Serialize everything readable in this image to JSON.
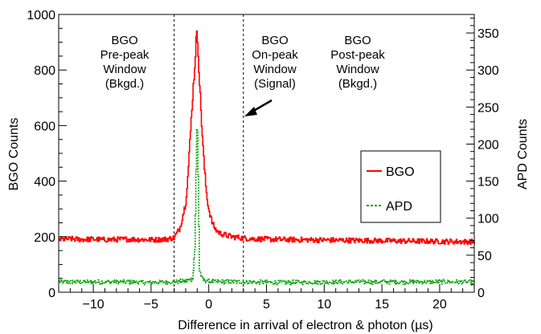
{
  "chart_data": {
    "type": "line",
    "xlabel": "Difference in arrival of electron & photon (µs)",
    "ylabel": "BGO Counts",
    "y2label": "APD Counts",
    "xlim": [
      -13,
      23
    ],
    "ylim": [
      0,
      1000
    ],
    "y2lim": [
      0,
      375
    ],
    "xticks": [
      -10,
      -5,
      0,
      5,
      10,
      15,
      20
    ],
    "xtick_labels": [
      "−10",
      "−5",
      "0",
      "5",
      "10",
      "15",
      "20"
    ],
    "yticks": [
      0,
      200,
      400,
      600,
      800,
      1000
    ],
    "y2ticks": [
      0,
      50,
      100,
      150,
      200,
      250,
      300,
      350
    ],
    "grid": false,
    "legend_position": "right",
    "series": [
      {
        "name": "BGO",
        "axis": "left",
        "color": "#ff0000",
        "style": "solid",
        "x": [
          -13,
          -12,
          -11,
          -10,
          -9,
          -8,
          -7,
          -6,
          -5,
          -4,
          -3.5,
          -3,
          -2.5,
          -2,
          -1.8,
          -1.6,
          -1.4,
          -1.2,
          -1.1,
          -1.0,
          -0.9,
          -0.8,
          -0.6,
          -0.4,
          -0.2,
          0,
          0.3,
          0.6,
          1,
          1.5,
          2,
          3,
          4,
          6,
          8,
          10,
          12,
          14,
          16,
          18,
          20,
          22,
          23
        ],
        "values": [
          190,
          192,
          190,
          191,
          189,
          190,
          191,
          190,
          189,
          190,
          192,
          196,
          230,
          320,
          420,
          560,
          700,
          820,
          905,
          930,
          860,
          760,
          600,
          460,
          360,
          300,
          250,
          225,
          212,
          205,
          200,
          195,
          192,
          190,
          189,
          188,
          187,
          186,
          185,
          184,
          183,
          182,
          182
        ]
      },
      {
        "name": "APD",
        "axis": "right",
        "color": "#00a000",
        "style": "dashed",
        "x": [
          -13,
          -10,
          -7,
          -5,
          -3,
          -2,
          -1.4,
          -1.2,
          -1.0,
          -0.9,
          -0.8,
          -0.6,
          -0.4,
          0,
          1,
          3,
          6,
          10,
          14,
          16,
          18,
          20,
          23
        ],
        "values": [
          14,
          14,
          14,
          13,
          14,
          15,
          18,
          60,
          245,
          150,
          30,
          18,
          16,
          15,
          14,
          14,
          13,
          14,
          14,
          14,
          14,
          14,
          14
        ]
      }
    ],
    "vlines": [
      -3,
      3
    ],
    "annotations": [
      {
        "id": "pre",
        "lines": [
          "BGO",
          "Pre-peak",
          "Window",
          "(Bkgd.)"
        ]
      },
      {
        "id": "on",
        "lines": [
          "BGO",
          "On-peak",
          "Window",
          "(Signal)"
        ]
      },
      {
        "id": "post",
        "lines": [
          "BGO",
          "Post-peak",
          "Window",
          "(Bkgd.)"
        ]
      }
    ]
  }
}
